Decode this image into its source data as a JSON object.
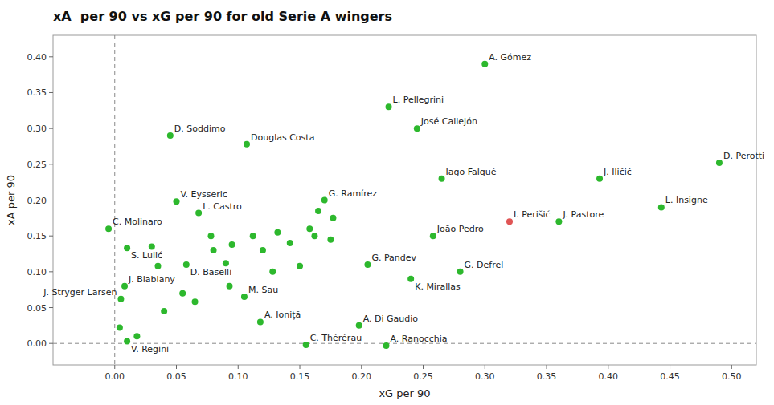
{
  "chart_data": {
    "type": "scatter",
    "title": "xA  per 90 vs xG per 90 for old Serie A wingers",
    "xlabel": "xG per 90",
    "ylabel": "xA per 90",
    "xlim": [
      -0.05,
      0.52
    ],
    "ylim": [
      -0.03,
      0.43
    ],
    "xticks": [
      {
        "value": 0,
        "label": "0.00"
      },
      0.05,
      {
        "value": 0.1,
        "label": "0.10"
      },
      0.15,
      {
        "value": 0.2,
        "label": "0.20"
      },
      0.25,
      {
        "value": 0.3,
        "label": "0.30"
      },
      0.35,
      {
        "value": 0.4,
        "label": "0.40"
      },
      0.45,
      {
        "value": 0.5,
        "label": "0.50"
      }
    ],
    "yticks": [
      {
        "value": 0,
        "label": "0.00"
      },
      0.05,
      {
        "value": 0.1,
        "label": "0.10"
      },
      0.15,
      {
        "value": 0.2,
        "label": "0.20"
      },
      0.25,
      {
        "value": 0.3,
        "label": "0.30"
      },
      0.35,
      {
        "value": 0.4,
        "label": "0.40"
      }
    ],
    "grid": false,
    "reference_lines": {
      "x": [
        0
      ],
      "y": [
        0
      ]
    },
    "x": [
      0.3,
      0.222,
      0.245,
      0.045,
      0.107,
      0.265,
      0.393,
      0.17,
      0.05,
      0.068,
      0.36,
      0.32,
      0.443,
      0.49,
      -0.005,
      0.01,
      0.258,
      0.058,
      0.205,
      0.24,
      0.28,
      0.008,
      0.005,
      0.105,
      0.118,
      0.198,
      0.01,
      0.155,
      0.22,
      0.03,
      0.035,
      0.04,
      0.055,
      0.065,
      0.078,
      0.08,
      0.09,
      0.093,
      0.095,
      0.112,
      0.12,
      0.128,
      0.132,
      0.142,
      0.15,
      0.158,
      0.162,
      0.165,
      0.175,
      0.177,
      0.018,
      0.004
    ],
    "values": [
      0.39,
      0.33,
      0.3,
      0.29,
      0.278,
      0.23,
      0.23,
      0.2,
      0.198,
      0.182,
      0.17,
      0.17,
      0.19,
      0.252,
      0.16,
      0.133,
      0.15,
      0.11,
      0.11,
      0.09,
      0.1,
      0.08,
      0.062,
      0.065,
      0.03,
      0.025,
      0.003,
      -0.002,
      -0.003,
      0.135,
      0.108,
      0.045,
      0.07,
      0.058,
      0.15,
      0.13,
      0.112,
      0.08,
      0.138,
      0.15,
      0.13,
      0.1,
      0.155,
      0.14,
      0.108,
      0.16,
      0.15,
      0.185,
      0.145,
      0.175,
      0.01,
      0.022
    ],
    "colors": [
      "#2db82d",
      "#2db82d",
      "#2db82d",
      "#2db82d",
      "#2db82d",
      "#2db82d",
      "#2db82d",
      "#2db82d",
      "#2db82d",
      "#2db82d",
      "#2db82d",
      "#e05555",
      "#2db82d",
      "#2db82d",
      "#2db82d",
      "#2db82d",
      "#2db82d",
      "#2db82d",
      "#2db82d",
      "#2db82d",
      "#2db82d",
      "#2db82d",
      "#2db82d",
      "#2db82d",
      "#2db82d",
      "#2db82d",
      "#2db82d",
      "#2db82d",
      "#2db82d",
      "#2db82d",
      "#2db82d",
      "#2db82d",
      "#2db82d",
      "#2db82d",
      "#2db82d",
      "#2db82d",
      "#2db82d",
      "#2db82d",
      "#2db82d",
      "#2db82d",
      "#2db82d",
      "#2db82d",
      "#2db82d",
      "#2db82d",
      "#2db82d",
      "#2db82d",
      "#2db82d",
      "#2db82d",
      "#2db82d",
      "#2db82d",
      "#2db82d",
      "#2db82d"
    ],
    "annotations": [
      {
        "text": "A. Gómez",
        "x": 0.3,
        "y": 0.39
      },
      {
        "text": "L. Pellegrini",
        "x": 0.222,
        "y": 0.33
      },
      {
        "text": "José Callejón",
        "x": 0.245,
        "y": 0.3
      },
      {
        "text": "D. Soddimo",
        "x": 0.045,
        "y": 0.29
      },
      {
        "text": "Douglas Costa",
        "x": 0.107,
        "y": 0.278
      },
      {
        "text": "Iago Falqué",
        "x": 0.265,
        "y": 0.23
      },
      {
        "text": "J. Iličič",
        "x": 0.393,
        "y": 0.23
      },
      {
        "text": "G. Ramírez",
        "x": 0.17,
        "y": 0.2
      },
      {
        "text": "V. Eysseric",
        "x": 0.05,
        "y": 0.198
      },
      {
        "text": "L. Castro",
        "x": 0.068,
        "y": 0.182
      },
      {
        "text": "J. Pastore",
        "x": 0.36,
        "y": 0.17
      },
      {
        "text": "I. Perišić",
        "x": 0.32,
        "y": 0.17
      },
      {
        "text": "L. Insigne",
        "x": 0.443,
        "y": 0.19
      },
      {
        "text": "D. Perotti",
        "x": 0.49,
        "y": 0.252
      },
      {
        "text": "C. Molinaro",
        "x": -0.005,
        "y": 0.16
      },
      {
        "text": "S. Lulić",
        "x": 0.01,
        "y": 0.133
      },
      {
        "text": "João Pedro",
        "x": 0.258,
        "y": 0.15
      },
      {
        "text": "D. Baselli",
        "x": 0.058,
        "y": 0.11
      },
      {
        "text": "G. Pandev",
        "x": 0.205,
        "y": 0.11
      },
      {
        "text": "K. Mirallas",
        "x": 0.24,
        "y": 0.09
      },
      {
        "text": "G. Defrel",
        "x": 0.28,
        "y": 0.1
      },
      {
        "text": "J. Biabiany",
        "x": 0.008,
        "y": 0.08
      },
      {
        "text": "J. Stryger Larsen",
        "x": 0.005,
        "y": 0.062
      },
      {
        "text": "M. Sau",
        "x": 0.105,
        "y": 0.065
      },
      {
        "text": "A. Ioniță",
        "x": 0.118,
        "y": 0.03
      },
      {
        "text": "A. Di Gaudio",
        "x": 0.198,
        "y": 0.025
      },
      {
        "text": "V. Regini",
        "x": 0.01,
        "y": 0.003
      },
      {
        "text": "C. Thérérau",
        "x": 0.155,
        "y": -0.002
      },
      {
        "text": "A. Ranocchia",
        "x": 0.22,
        "y": -0.003
      }
    ]
  }
}
